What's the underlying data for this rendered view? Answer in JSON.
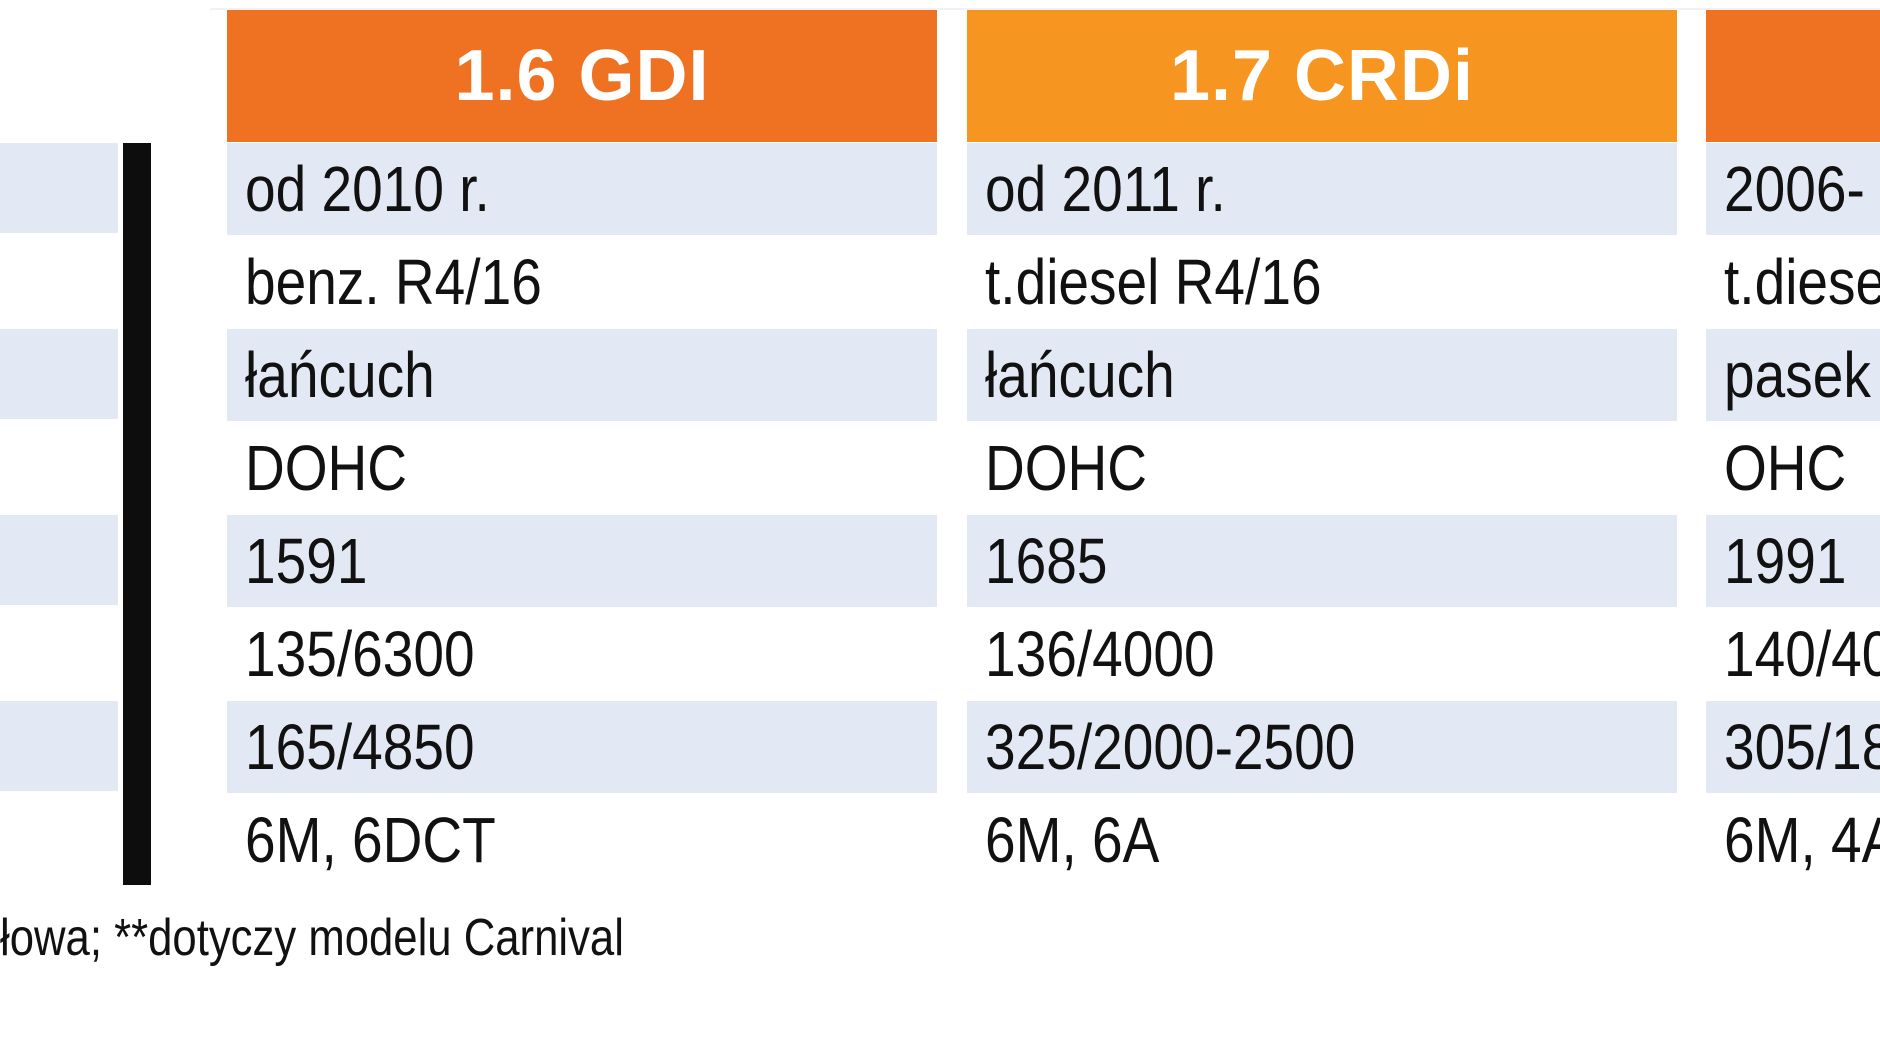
{
  "colors": {
    "header_a": "#ef7222",
    "header_b": "#f6951f",
    "header_c": "#ef7222",
    "row_shade": "#e3e9f4",
    "divider_bar": "#0d0d0d"
  },
  "table": {
    "columns": [
      {
        "header": "1.6 GDI",
        "cells": [
          "od 2010 r.",
          "benz. R4/16",
          "łańcuch",
          "DOHC",
          "1591",
          "135/6300",
          "165/4850",
          "6M, 6DCT"
        ]
      },
      {
        "header": "1.7 CRDi",
        "cells": [
          "od 2011 r.",
          "t.diesel R4/16",
          "łańcuch",
          "DOHC",
          "1685",
          "136/4000",
          "325/2000-2500",
          "6M, 6A"
        ]
      },
      {
        "header": "",
        "cells": [
          "2006-",
          "t.diese",
          "pasek",
          "OHC",
          "1991",
          "140/40",
          "305/18",
          "6M, 4A"
        ]
      }
    ]
  },
  "footnote": "łowa; **dotyczy modelu Carnival"
}
